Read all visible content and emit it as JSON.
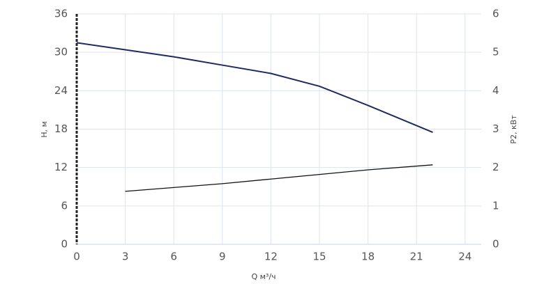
{
  "chart_data": {
    "type": "line",
    "x": [
      0,
      3,
      6,
      9,
      12,
      15,
      18,
      22
    ],
    "series": [
      {
        "name": "H",
        "color": "#1f2a5e",
        "values": [
          31.5,
          30.4,
          29.3,
          28.0,
          26.7,
          24.7,
          21.7,
          17.5
        ]
      },
      {
        "name": "P2",
        "color": "#111111",
        "axis": "y2",
        "values": [
          null,
          1.38,
          1.48,
          1.58,
          1.7,
          1.82,
          1.94,
          2.07
        ]
      }
    ],
    "x_label": "Q м³/ч",
    "y_label": "H, м",
    "y2_label": "P2, кВт",
    "xlim": [
      0,
      25
    ],
    "xticks": [
      0,
      3,
      6,
      9,
      12,
      15,
      18,
      21,
      24
    ],
    "ylim": [
      0,
      36
    ],
    "yticks": [
      0,
      6,
      12,
      18,
      24,
      30,
      36
    ],
    "y2lim": [
      0,
      6
    ],
    "y2ticks": [
      0,
      1,
      2,
      3,
      4,
      5,
      6
    ],
    "grid": true
  }
}
